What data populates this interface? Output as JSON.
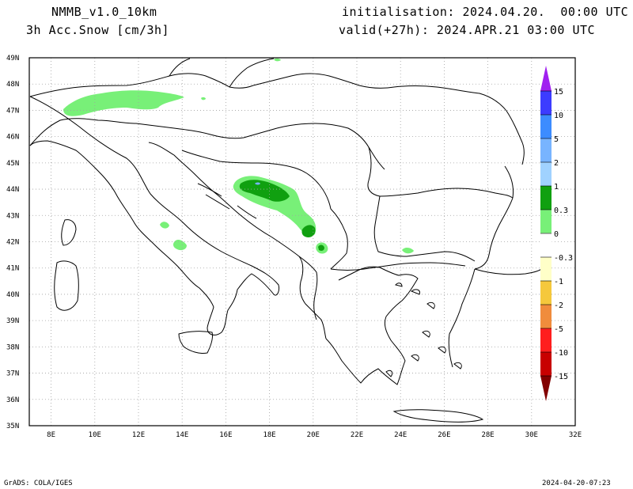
{
  "header": {
    "model": "NMMB_v1.0_10km",
    "field": "3h Acc.Snow [cm/3h]",
    "init": "initialisation: 2024.04.20.  00:00 UTC",
    "valid": "valid(+27h): 2024.APR.21 03:00 UTC"
  },
  "map": {
    "lat_labels": [
      "49N",
      "48N",
      "47N",
      "46N",
      "45N",
      "44N",
      "43N",
      "42N",
      "41N",
      "40N",
      "39N",
      "38N",
      "37N",
      "36N",
      "35N"
    ],
    "lon_labels": [
      "8E",
      "10E",
      "12E",
      "14E",
      "16E",
      "18E",
      "20E",
      "22E",
      "24E",
      "26E",
      "28E",
      "30E",
      "32E"
    ],
    "lat_range": [
      35,
      49
    ],
    "lon_range": [
      7,
      32
    ],
    "grid": "dotted"
  },
  "colorbar": {
    "labels": [
      "15",
      "10",
      "5",
      "2",
      "1",
      "0.3",
      "0",
      "-0.3",
      "-1",
      "-2",
      "-5",
      "-10",
      "-15"
    ],
    "colors": [
      "#a020f0",
      "#3c3cff",
      "#3c8cff",
      "#78b4ff",
      "#a0d2ff",
      "#10a010",
      "#78f078",
      "#ffffff",
      "#ffffc8",
      "#f5c83c",
      "#f08c3c",
      "#ff1e1e",
      "#c80000",
      "#820000"
    ]
  },
  "footer": {
    "left": "GrADS: COLA/IGES",
    "right": "2024-04-20-07:23"
  },
  "snow_colors": {
    "light": "#78f078",
    "mid": "#10a010",
    "blue": "#78b4ff"
  }
}
